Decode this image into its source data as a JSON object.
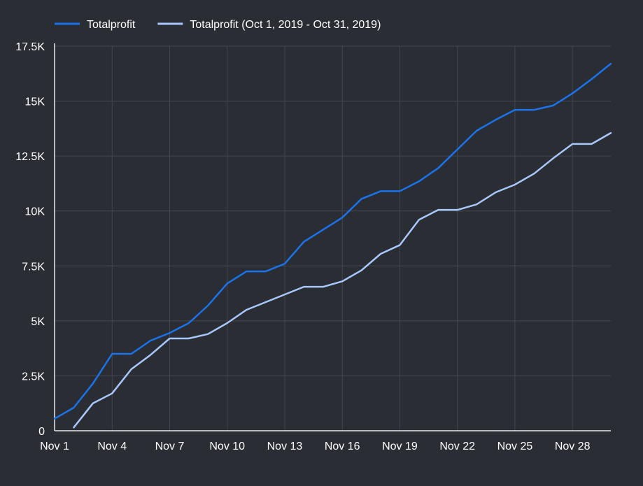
{
  "chart_data": {
    "type": "line",
    "title": "",
    "xlabel": "",
    "ylabel": "",
    "legend_position": "top-left",
    "grid": true,
    "ylim": [
      0,
      17500
    ],
    "y_ticks": [
      0,
      2500,
      5000,
      7500,
      10000,
      12500,
      15000,
      17500
    ],
    "y_tick_labels": [
      "0",
      "2.5K",
      "5K",
      "7.5K",
      "10K",
      "12.5K",
      "15K",
      "17.5K"
    ],
    "x": [
      1,
      2,
      3,
      4,
      5,
      6,
      7,
      8,
      9,
      10,
      11,
      12,
      13,
      14,
      15,
      16,
      17,
      18,
      19,
      20,
      21,
      22,
      23,
      24,
      25,
      26,
      27,
      28,
      29,
      30
    ],
    "x_tick_values": [
      1,
      4,
      7,
      10,
      13,
      16,
      19,
      22,
      25,
      28
    ],
    "x_tick_labels": [
      "Nov 1",
      "Nov 4",
      "Nov 7",
      "Nov 10",
      "Nov 13",
      "Nov 16",
      "Nov 19",
      "Nov 22",
      "Nov 25",
      "Nov 28"
    ],
    "series": [
      {
        "name": "Totalprofit",
        "color": "#1a73e8",
        "values": [
          550,
          1050,
          2150,
          3500,
          3500,
          4100,
          4450,
          4900,
          5700,
          6700,
          7250,
          7250,
          7600,
          8600,
          9150,
          9700,
          10550,
          10900,
          10900,
          11350,
          11950,
          12800,
          13650,
          14150,
          14600,
          14600,
          14800,
          15350,
          16000,
          16700
        ]
      },
      {
        "name": "Totalprofit (Oct 1, 2019 - Oct 31, 2019)",
        "color": "#a8c7fa",
        "values": [
          null,
          150,
          1250,
          1700,
          2800,
          3450,
          4200,
          4200,
          4400,
          4900,
          5500,
          5850,
          6200,
          6550,
          6550,
          6800,
          7300,
          8050,
          8450,
          9600,
          10050,
          10050,
          10300,
          10850,
          11200,
          11700,
          12400,
          13050,
          13050,
          13550
        ]
      }
    ]
  }
}
